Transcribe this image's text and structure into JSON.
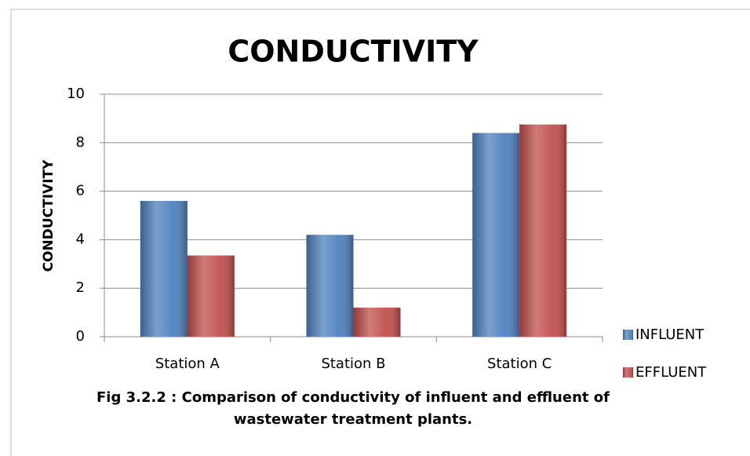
{
  "chart_data": {
    "type": "bar",
    "title": "CONDUCTIVITY",
    "ylabel": "CONDUCTIVITY",
    "caption": [
      "Fig 3.2.2 : Comparison of conductivity of influent and effluent of",
      "wastewater treatment plants."
    ],
    "categories": [
      "Station A",
      "Station B",
      "Station C"
    ],
    "series": [
      {
        "name": "INFLUENT",
        "color": "#4f81bd",
        "values": [
          5.6,
          4.2,
          8.4
        ]
      },
      {
        "name": "EFFLUENT",
        "color": "#c0504d",
        "values": [
          3.35,
          1.2,
          8.75
        ]
      }
    ],
    "ylim": [
      0,
      10
    ],
    "yticks": [
      0,
      2,
      4,
      6,
      8,
      10
    ],
    "grid": true,
    "legend": "right"
  }
}
